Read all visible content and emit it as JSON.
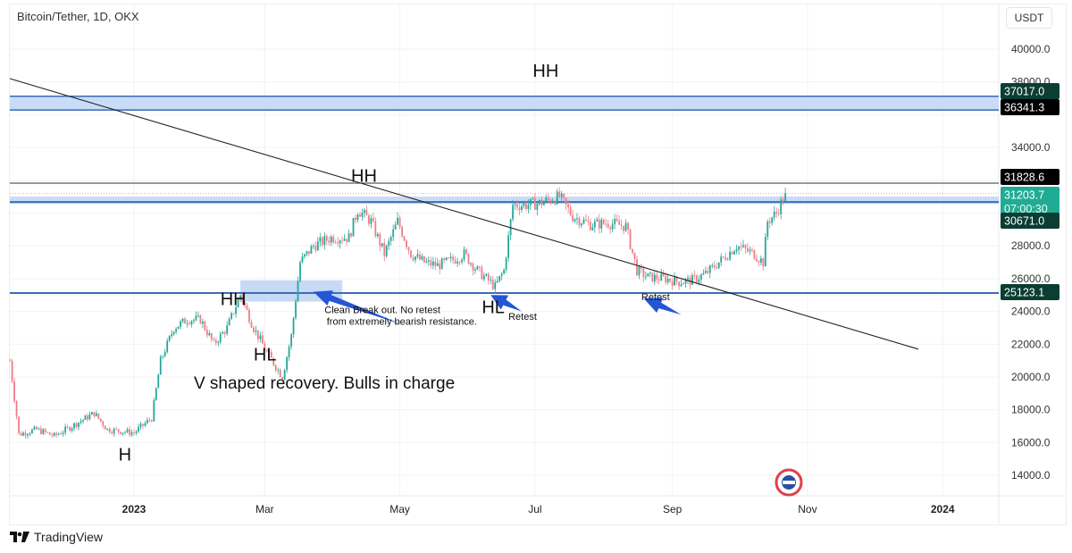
{
  "header": {
    "title": "Bitcoin/Tether, 1D, OKX",
    "currency": "USDT"
  },
  "footer": {
    "brand": "TradingView"
  },
  "chart_data": {
    "type": "candlestick",
    "title": "Bitcoin/Tether, 1D, OKX",
    "ylim": [
      13000,
      41500
    ],
    "xlim": [
      "2022-11-06",
      "2024-02-05"
    ],
    "grid": true,
    "y_ticks": [
      "40000.0",
      "38000.0",
      "34000.0",
      "28000.0",
      "26000.0",
      "24000.0",
      "22000.0",
      "20000.0",
      "18000.0",
      "16000.0",
      "14000.0"
    ],
    "x_ticks": [
      {
        "date": "2023-01-01",
        "label": "2023",
        "bold": true
      },
      {
        "date": "2023-03-01",
        "label": "Mar"
      },
      {
        "date": "2023-05-01",
        "label": "May"
      },
      {
        "date": "2023-07-01",
        "label": "Jul"
      },
      {
        "date": "2023-09-01",
        "label": "Sep"
      },
      {
        "date": "2023-11-01",
        "label": "Nov"
      },
      {
        "date": "2024-01-01",
        "label": "2024",
        "bold": true
      }
    ],
    "approx_close_path": [
      [
        "2022-11-06",
        21000
      ],
      [
        "2022-11-10",
        16500
      ],
      [
        "2022-11-18",
        16800
      ],
      [
        "2022-11-26",
        16400
      ],
      [
        "2022-12-04",
        17000
      ],
      [
        "2022-12-14",
        17800
      ],
      [
        "2022-12-20",
        16800
      ],
      [
        "2023-01-01",
        16600
      ],
      [
        "2023-01-09",
        17500
      ],
      [
        "2023-01-13",
        21000
      ],
      [
        "2023-01-19",
        23000
      ],
      [
        "2023-01-25",
        23500
      ],
      [
        "2023-01-31",
        23500
      ],
      [
        "2023-02-06",
        22000
      ],
      [
        "2023-02-12",
        23000
      ],
      [
        "2023-02-18",
        25000
      ],
      [
        "2023-02-24",
        23000
      ],
      [
        "2023-03-02",
        21500
      ],
      [
        "2023-03-09",
        20000
      ],
      [
        "2023-03-13",
        22500
      ],
      [
        "2023-03-17",
        27000
      ],
      [
        "2023-03-23",
        28000
      ],
      [
        "2023-03-31",
        28500
      ],
      [
        "2023-04-08",
        28500
      ],
      [
        "2023-04-12",
        30200
      ],
      [
        "2023-04-18",
        29500
      ],
      [
        "2023-04-24",
        27500
      ],
      [
        "2023-04-30",
        29500
      ],
      [
        "2023-05-06",
        27500
      ],
      [
        "2023-05-12",
        27000
      ],
      [
        "2023-05-18",
        26800
      ],
      [
        "2023-05-26",
        27200
      ],
      [
        "2023-05-30",
        27500
      ],
      [
        "2023-06-05",
        26500
      ],
      [
        "2023-06-13",
        25500
      ],
      [
        "2023-06-17",
        26500
      ],
      [
        "2023-06-21",
        30500
      ],
      [
        "2023-06-27",
        30500
      ],
      [
        "2023-07-03",
        30600
      ],
      [
        "2023-07-12",
        31000
      ],
      [
        "2023-07-18",
        29800
      ],
      [
        "2023-07-26",
        29300
      ],
      [
        "2023-08-03",
        29400
      ],
      [
        "2023-08-11",
        29200
      ],
      [
        "2023-08-16",
        26500
      ],
      [
        "2023-08-21",
        26100
      ],
      [
        "2023-08-29",
        26000
      ],
      [
        "2023-09-04",
        25800
      ],
      [
        "2023-09-10",
        25900
      ],
      [
        "2023-09-16",
        26300
      ],
      [
        "2023-09-22",
        27000
      ],
      [
        "2023-09-30",
        28000
      ],
      [
        "2023-10-08",
        27500
      ],
      [
        "2023-10-12",
        27000
      ],
      [
        "2023-10-14",
        29500
      ],
      [
        "2023-10-18",
        30000
      ],
      [
        "2023-10-22",
        31203.7
      ]
    ],
    "price_labels": [
      {
        "value": 37017.0,
        "label": "37017.0",
        "color": "#0b3d33"
      },
      {
        "value": 36341.3,
        "label": "36341.3",
        "color": "#000000"
      },
      {
        "value": 31828.6,
        "label": "31828.6",
        "color": "#000000"
      },
      {
        "value": 31203.7,
        "label": "31203.7",
        "countdown": "07:00:30",
        "color": "#22ab94"
      },
      {
        "value": 30671.0,
        "label": "30671.0",
        "color": "#0b3d33"
      },
      {
        "value": 25123.1,
        "label": "25123.1",
        "color": "#0b3d33"
      }
    ],
    "zones": [
      {
        "from": 36341.3,
        "to": 37017.0,
        "color": "#bcd3f5"
      },
      {
        "from": 30671.0,
        "to": 30900,
        "color": "#bcd3f5"
      }
    ],
    "hlines": [
      {
        "value": 31828.6,
        "color": "#333333"
      },
      {
        "value": 25123.1,
        "color": "#3d6db5"
      },
      {
        "value": 30671.0,
        "color": "#3d6db5"
      }
    ],
    "boxes": [
      {
        "from_date": "2023-02-18",
        "to_date": "2023-04-05",
        "from": 24600,
        "to": 25900,
        "color": "#bcd3f5"
      }
    ],
    "trendline": {
      "from": [
        "2022-11-06",
        38200
      ],
      "to": [
        "2023-12-21",
        21700
      ]
    },
    "annotations": [
      {
        "text": "HH",
        "date": "2023-06-30",
        "value": 38300,
        "size": "large"
      },
      {
        "text": "HH",
        "date": "2023-04-09",
        "value": 31900,
        "size": "large"
      },
      {
        "text": "HH",
        "date": "2023-02-09",
        "value": 24400,
        "size": "large"
      },
      {
        "text": "HL",
        "date": "2023-02-24",
        "value": 21000,
        "size": "large"
      },
      {
        "text": "HL",
        "date": "2023-06-07",
        "value": 23900,
        "size": "large"
      },
      {
        "text": "H",
        "date": "2022-12-25",
        "value": 14900,
        "size": "large"
      },
      {
        "text": "V shaped recovery. Bulls in charge",
        "date": "2023-01-28",
        "value": 19300,
        "size": "medium"
      },
      {
        "text": "Clean Break out. No retest",
        "date": "2023-03-28",
        "value": 23900,
        "size": "small"
      },
      {
        "text": "from extremely bearish resistance.",
        "date": "2023-03-29",
        "value": 23200,
        "size": "small"
      },
      {
        "text": "Retest",
        "date": "2023-06-19",
        "value": 23500,
        "size": "small"
      },
      {
        "text": "Retest",
        "date": "2023-08-18",
        "value": 24700,
        "size": "small"
      }
    ],
    "arrows": [
      {
        "tip": [
          "2023-03-23",
          25200
        ],
        "tail": [
          "2023-05-02",
          23200
        ],
        "color": "#2456d6"
      },
      {
        "tip": [
          "2023-06-11",
          25000
        ],
        "tail": [
          "2023-06-25",
          24000
        ],
        "color": "#2456d6"
      },
      {
        "tip": [
          "2023-08-19",
          24800
        ],
        "tail": [
          "2023-09-05",
          23800
        ],
        "color": "#2456d6"
      }
    ],
    "colors": {
      "up": "#26a69a",
      "down": "#ef7d86",
      "grid": "#f1f2f5"
    }
  }
}
